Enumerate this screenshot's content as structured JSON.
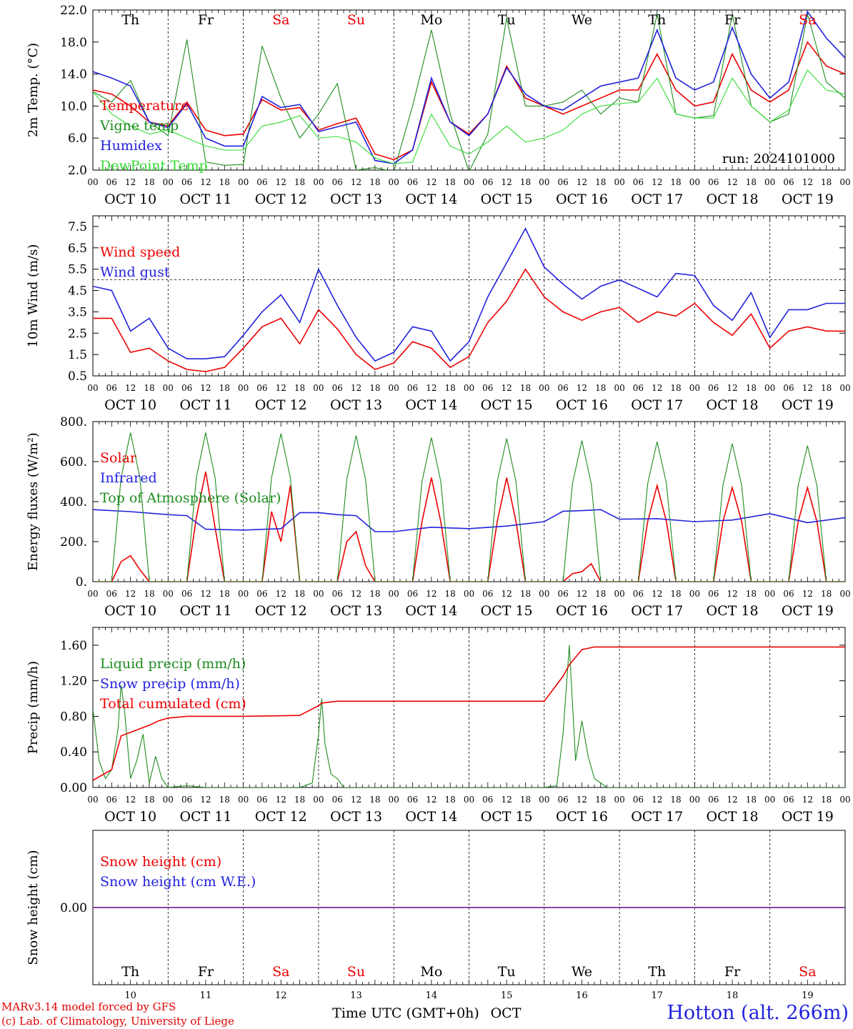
{
  "footer": {
    "credit_line1": "MARv3.14 model forced by GFS",
    "credit_line2": "(c) Lab. of Climatology, University of Liege",
    "station": "Hotton (alt. 266m)",
    "time_axis_label": "Time UTC (GMT+0h)",
    "month_label": "OCT"
  },
  "colors": {
    "red": "#ee0000",
    "green": "#1e8c1e",
    "blue": "#2222dd",
    "lightgreen": "#33dd33",
    "purple": "#7a2a9a",
    "black": "#000000"
  },
  "time_axis": {
    "hour_ticks": [
      "00",
      "06",
      "12",
      "18"
    ],
    "date_labels": [
      "OCT 10",
      "OCT 11",
      "OCT 12",
      "OCT 13",
      "OCT 14",
      "OCT 15",
      "OCT 16",
      "OCT 17",
      "OCT 18",
      "OCT 19"
    ],
    "weekdays": [
      "Th",
      "Fr",
      "Sa",
      "Su",
      "Mo",
      "Tu",
      "We",
      "Th",
      "Fr",
      "Sa"
    ],
    "weekday_colors": [
      "black",
      "black",
      "red",
      "red",
      "black",
      "black",
      "black",
      "black",
      "black",
      "red"
    ],
    "day_numbers": [
      "10",
      "11",
      "12",
      "13",
      "14",
      "15",
      "16",
      "17",
      "18",
      "19"
    ],
    "x_range_hours": [
      0,
      240
    ]
  },
  "chart_data": [
    {
      "type": "line",
      "ylabel": "2m Temp. (°C)",
      "yticks": [
        "2.0",
        "6.0",
        "10.0",
        "14.0",
        "18.0",
        "22.0"
      ],
      "ylim": [
        2,
        22
      ],
      "annotation": "run: 2024101000",
      "show_weekdays": true,
      "series": [
        {
          "name": "Temperature",
          "color": "red",
          "x": [
            0,
            6,
            12,
            18,
            24,
            30,
            36,
            42,
            48,
            54,
            60,
            66,
            72,
            78,
            84,
            90,
            96,
            102,
            108,
            114,
            120,
            126,
            132,
            138,
            144,
            150,
            156,
            162,
            168,
            174,
            180,
            186,
            192,
            198,
            204,
            210,
            216,
            222,
            228,
            234,
            240
          ],
          "y": [
            12,
            11.5,
            10,
            8,
            7.5,
            10.5,
            7,
            6.3,
            6.5,
            10.8,
            9.5,
            9.8,
            7,
            7.8,
            8.5,
            4,
            3.3,
            4.5,
            13,
            8,
            6.5,
            9,
            15,
            11,
            10,
            9,
            10,
            11,
            12,
            12,
            16.5,
            12,
            10,
            10.5,
            16.5,
            12,
            10.5,
            12,
            18,
            15,
            14
          ]
        },
        {
          "name": "Vigne temp",
          "color": "green",
          "x": [
            0,
            6,
            12,
            18,
            24,
            30,
            36,
            42,
            48,
            54,
            60,
            66,
            72,
            78,
            84,
            90,
            96,
            102,
            108,
            114,
            120,
            126,
            132,
            138,
            144,
            150,
            156,
            162,
            168,
            174,
            180,
            186,
            192,
            198,
            204,
            210,
            216,
            222,
            228,
            234,
            240
          ],
          "y": [
            11.8,
            10.5,
            13.2,
            8,
            6.3,
            18.3,
            3,
            2.6,
            2.7,
            17.5,
            11,
            6,
            9,
            12.8,
            2,
            2.3,
            1.8,
            10,
            19.5,
            9,
            1.8,
            6.5,
            21,
            10,
            10,
            10.5,
            12,
            9,
            11,
            10.5,
            21.5,
            9,
            8.5,
            8.8,
            21.5,
            10,
            8,
            9,
            21.5,
            13,
            11
          ]
        },
        {
          "name": "Humidex",
          "color": "blue",
          "x": [
            0,
            6,
            12,
            18,
            24,
            30,
            36,
            42,
            48,
            54,
            60,
            66,
            72,
            78,
            84,
            90,
            96,
            102,
            108,
            114,
            120,
            126,
            132,
            138,
            144,
            150,
            156,
            162,
            168,
            174,
            180,
            186,
            192,
            198,
            204,
            210,
            216,
            222,
            228,
            234,
            240
          ],
          "y": [
            14.3,
            13.5,
            12.5,
            8,
            7.3,
            10.3,
            6,
            5,
            5,
            11.2,
            9.8,
            10.2,
            6.8,
            7.4,
            8,
            3.2,
            2.8,
            4.5,
            13.5,
            8,
            6.3,
            9,
            14.8,
            11.5,
            10,
            9.5,
            11,
            12.5,
            13,
            13.5,
            19.5,
            13.5,
            12,
            13,
            19.8,
            14,
            11,
            13,
            21.8,
            18.5,
            16
          ]
        },
        {
          "name": "DewPoint Temp",
          "color": "lightgreen",
          "x": [
            0,
            6,
            12,
            18,
            24,
            30,
            36,
            42,
            48,
            54,
            60,
            66,
            72,
            78,
            84,
            90,
            96,
            102,
            108,
            114,
            120,
            126,
            132,
            138,
            144,
            150,
            156,
            162,
            168,
            174,
            180,
            186,
            192,
            198,
            204,
            210,
            216,
            222,
            228,
            234,
            240
          ],
          "y": [
            11.8,
            9,
            7.5,
            6.5,
            7,
            6,
            5,
            4.5,
            4.5,
            7.5,
            8,
            8.8,
            6,
            6.2,
            5.5,
            3.5,
            2.8,
            3,
            9,
            5,
            4,
            5.5,
            7.5,
            5.5,
            6,
            7,
            9,
            10,
            10.3,
            10.5,
            13.5,
            9,
            8.5,
            8.5,
            13.5,
            10,
            8,
            9.5,
            14.5,
            12,
            11.5
          ]
        }
      ]
    },
    {
      "type": "line",
      "ylabel": "10m Wind (m/s)",
      "yticks": [
        "0.5",
        "1.5",
        "2.5",
        "3.5",
        "4.5",
        "5.5",
        "6.5",
        "7.5"
      ],
      "ylim": [
        0.5,
        8
      ],
      "reference_line": 5,
      "series": [
        {
          "name": "Wind speed",
          "color": "red",
          "x": [
            0,
            6,
            12,
            18,
            24,
            30,
            36,
            42,
            48,
            54,
            60,
            66,
            72,
            78,
            84,
            90,
            96,
            102,
            108,
            114,
            120,
            126,
            132,
            138,
            144,
            150,
            156,
            162,
            168,
            174,
            180,
            186,
            192,
            198,
            204,
            210,
            216,
            222,
            228,
            234,
            240
          ],
          "y": [
            3.2,
            3.2,
            1.6,
            1.8,
            1.2,
            0.8,
            0.7,
            0.9,
            1.8,
            2.8,
            3.2,
            2,
            3.6,
            2.7,
            1.5,
            0.8,
            1.1,
            2.1,
            1.8,
            0.9,
            1.4,
            3,
            4,
            5.5,
            4.2,
            3.5,
            3.1,
            3.5,
            3.7,
            3,
            3.5,
            3.3,
            3.9,
            3,
            2.4,
            3.4,
            1.8,
            2.6,
            2.8,
            2.6,
            2.6
          ]
        },
        {
          "name": "Wind gust",
          "color": "blue",
          "x": [
            0,
            6,
            12,
            18,
            24,
            30,
            36,
            42,
            48,
            54,
            60,
            66,
            72,
            78,
            84,
            90,
            96,
            102,
            108,
            114,
            120,
            126,
            132,
            138,
            144,
            150,
            156,
            162,
            168,
            174,
            180,
            186,
            192,
            198,
            204,
            210,
            216,
            222,
            228,
            234,
            240
          ],
          "y": [
            4.7,
            4.5,
            2.6,
            3.2,
            1.8,
            1.3,
            1.3,
            1.4,
            2.4,
            3.5,
            4.3,
            3,
            5.5,
            3.8,
            2.3,
            1.2,
            1.6,
            2.8,
            2.6,
            1.2,
            2.1,
            4.2,
            5.8,
            7.4,
            5.6,
            4.8,
            4.1,
            4.7,
            5,
            4.6,
            4.2,
            5.3,
            5.2,
            3.8,
            3.1,
            4.4,
            2.3,
            3.6,
            3.6,
            3.9,
            3.9
          ]
        }
      ]
    },
    {
      "type": "line",
      "ylabel": "Energy fluxes (W/m²)",
      "yticks": [
        "0.",
        "200.",
        "400.",
        "600.",
        "800."
      ],
      "ylim": [
        0,
        800
      ],
      "series": [
        {
          "name": "Solar",
          "color": "red",
          "x": [
            0,
            6,
            9,
            12,
            15,
            18,
            24,
            30,
            33,
            36,
            39,
            42,
            48,
            54,
            57,
            60,
            63,
            66,
            72,
            78,
            81,
            84,
            87,
            90,
            96,
            102,
            105,
            108,
            111,
            114,
            120,
            126,
            129,
            132,
            135,
            138,
            144,
            150,
            153,
            156,
            159,
            162,
            168,
            174,
            177,
            180,
            183,
            186,
            192,
            198,
            201,
            204,
            207,
            210,
            216,
            222,
            225,
            228,
            231,
            234,
            240
          ],
          "y": [
            0,
            0,
            100,
            130,
            60,
            0,
            0,
            0,
            320,
            550,
            270,
            0,
            0,
            0,
            350,
            200,
            480,
            0,
            0,
            0,
            200,
            250,
            80,
            0,
            0,
            0,
            300,
            520,
            300,
            0,
            0,
            0,
            300,
            520,
            300,
            0,
            0,
            0,
            40,
            50,
            90,
            0,
            0,
            0,
            300,
            480,
            300,
            0,
            0,
            0,
            300,
            470,
            300,
            0,
            0,
            0,
            300,
            470,
            300,
            0,
            0
          ]
        },
        {
          "name": "Infrared",
          "color": "blue",
          "x": [
            0,
            12,
            24,
            30,
            36,
            48,
            60,
            66,
            72,
            78,
            84,
            90,
            96,
            108,
            120,
            132,
            144,
            150,
            156,
            162,
            168,
            180,
            192,
            204,
            216,
            228,
            240
          ],
          "y": [
            360,
            350,
            335,
            330,
            262,
            258,
            265,
            345,
            345,
            335,
            330,
            250,
            250,
            272,
            265,
            278,
            300,
            352,
            355,
            360,
            312,
            315,
            300,
            308,
            340,
            295,
            320
          ]
        },
        {
          "name": "Top of Atmosphere (Solar)",
          "color": "green",
          "x": [
            0,
            6,
            9,
            12,
            15,
            18,
            24,
            30,
            33,
            36,
            39,
            42,
            48,
            54,
            57,
            60,
            63,
            66,
            72,
            78,
            81,
            84,
            87,
            90,
            96,
            102,
            105,
            108,
            111,
            114,
            120,
            126,
            129,
            132,
            135,
            138,
            144,
            150,
            153,
            156,
            159,
            162,
            168,
            174,
            177,
            180,
            183,
            186,
            192,
            198,
            201,
            204,
            207,
            210,
            216,
            222,
            225,
            228,
            231,
            234,
            240
          ],
          "y": [
            0,
            0,
            520,
            745,
            520,
            0,
            0,
            0,
            520,
            745,
            520,
            0,
            0,
            0,
            520,
            740,
            520,
            0,
            0,
            0,
            510,
            730,
            510,
            0,
            0,
            0,
            500,
            720,
            500,
            0,
            0,
            0,
            500,
            715,
            500,
            0,
            0,
            0,
            490,
            705,
            490,
            0,
            0,
            0,
            490,
            700,
            490,
            0,
            0,
            0,
            480,
            690,
            480,
            0,
            0,
            0,
            480,
            680,
            480,
            0,
            0
          ]
        }
      ]
    },
    {
      "type": "line",
      "ylabel": "Precip (mm/h)",
      "yticks": [
        "0.00",
        "0.40",
        "0.80",
        "1.20",
        "1.60"
      ],
      "ylim": [
        0,
        1.8
      ],
      "series": [
        {
          "name": "Liquid precip (mm/h)",
          "color": "green",
          "x": [
            0,
            2,
            4,
            6,
            8,
            9,
            10,
            12,
            14,
            16,
            18,
            20,
            22,
            24,
            30,
            36,
            48,
            66,
            70,
            72,
            73,
            74,
            76,
            78,
            80,
            90,
            144,
            148,
            150,
            152,
            154,
            156,
            158,
            160,
            164,
            240
          ],
          "y": [
            0.88,
            0.3,
            0.1,
            0.2,
            0.65,
            1.15,
            0.9,
            0.1,
            0.3,
            0.6,
            0.05,
            0.35,
            0.1,
            0,
            0.02,
            0,
            0,
            0,
            0.05,
            0.6,
            1,
            0.5,
            0.15,
            0.1,
            0,
            0,
            0,
            0.02,
            0.6,
            1.6,
            0.3,
            0.75,
            0.35,
            0.1,
            0,
            0
          ]
        },
        {
          "name": "Snow precip (mm/h)",
          "color": "blue",
          "x": [],
          "y": []
        },
        {
          "name": "Total cumulated (cm)",
          "color": "red",
          "x": [
            0,
            6,
            9,
            12,
            18,
            21,
            24,
            30,
            48,
            66,
            72,
            73,
            78,
            90,
            144,
            150,
            152,
            156,
            160,
            240
          ],
          "y": [
            0.08,
            0.2,
            0.58,
            0.62,
            0.7,
            0.75,
            0.78,
            0.8,
            0.8,
            0.81,
            0.92,
            0.95,
            0.97,
            0.97,
            0.97,
            1.25,
            1.38,
            1.55,
            1.58,
            1.58
          ]
        }
      ]
    },
    {
      "type": "line",
      "ylabel": "Snow height (cm)",
      "yticks": [
        "0.00"
      ],
      "ylim": [
        -1,
        1
      ],
      "series": [
        {
          "name": "Snow height (cm)",
          "color": "red",
          "x": [
            0,
            240
          ],
          "y": [
            0,
            0
          ]
        },
        {
          "name": "Snow height (cm W.E.)",
          "color": "blue",
          "x": [
            0,
            240
          ],
          "y": [
            0,
            0
          ]
        }
      ]
    }
  ]
}
